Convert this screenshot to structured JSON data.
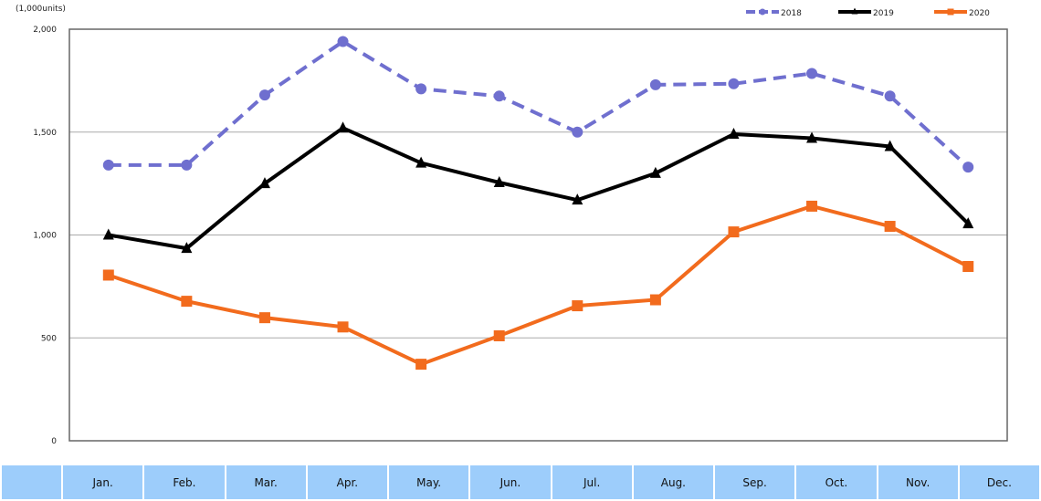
{
  "chart_data": {
    "type": "line",
    "unit_label": "(1,000units)",
    "categories": [
      "Jan.",
      "Feb.",
      "Mar.",
      "Apr.",
      "May.",
      "Jun.",
      "Jul.",
      "Aug.",
      "Sep.",
      "Oct.",
      "Nov.",
      "Dec."
    ],
    "ylim": [
      0,
      2000
    ],
    "yticks": [
      0,
      500,
      1000,
      1500,
      2000
    ],
    "ytick_labels": [
      "0",
      "500",
      "1,000",
      "1,500",
      "2,000"
    ],
    "grid": true,
    "legend_position": "top-right",
    "series": [
      {
        "name": "2018",
        "color": "#6f6fcf",
        "dash": true,
        "marker": "circle",
        "values": [
          1340,
          1340,
          1680,
          1940,
          1710,
          1675,
          1500,
          1730,
          1735,
          1785,
          1675,
          1330
        ]
      },
      {
        "name": "2019",
        "color": "#000000",
        "dash": false,
        "marker": "triangle",
        "values": [
          1000,
          935,
          1250,
          1520,
          1350,
          1255,
          1170,
          1300,
          1490,
          1470,
          1430,
          1055
        ]
      },
      {
        "name": "2020",
        "color": "#f26b1d",
        "dash": false,
        "marker": "square",
        "values": [
          805,
          678,
          598,
          553,
          372,
          510,
          656,
          685,
          1015,
          1140,
          1042,
          847
        ]
      }
    ]
  }
}
